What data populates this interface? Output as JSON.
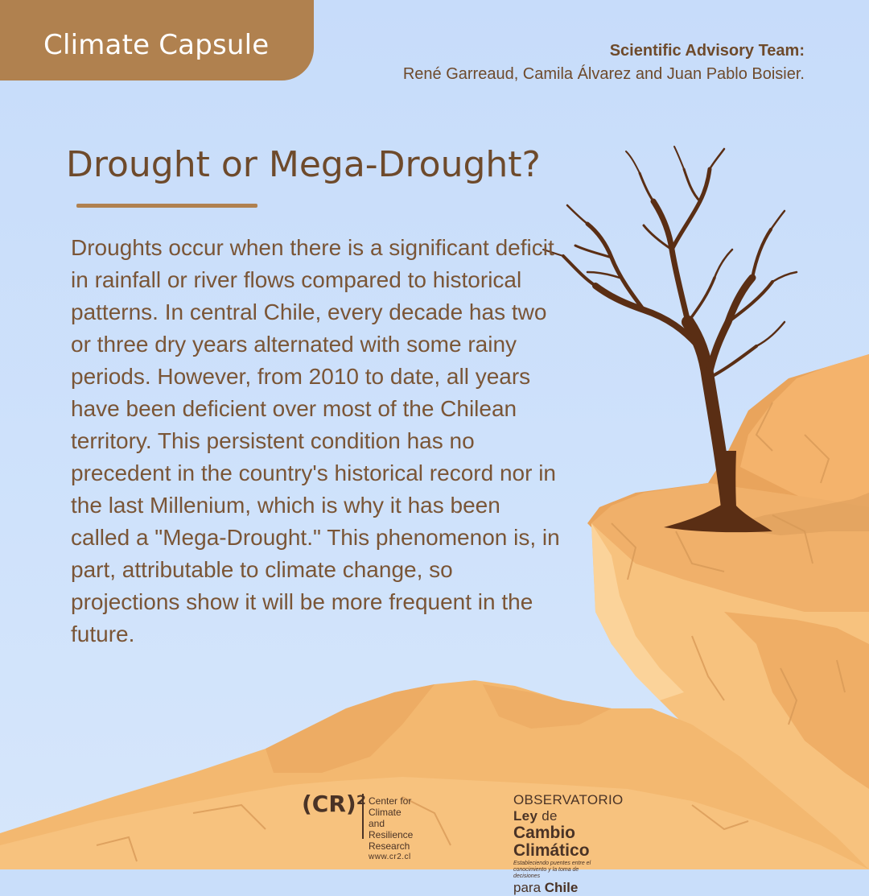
{
  "header": {
    "tab_label": "Climate Capsule",
    "advisory_label": "Scientific Advisory Team:",
    "advisory_names": "René Garreaud, Camila Álvarez and Juan Pablo Boisier."
  },
  "article": {
    "title": "Drought or Mega-Drought?",
    "body": "Droughts occur when there is a significant deficit in rainfall or river flows compared to historical patterns. In central Chile, every decade has two or three dry years alternated with some rainy periods. However, from 2010 to date, all years have been deficient over most of the Chilean territory. This persistent condition has no precedent in the country's historical record nor in the last Millenium, which is why it has been called a \"Mega-Drought.\" This phenomenon is, in part, attributable to climate change, so projections show it will be more frequent in the future."
  },
  "footer": {
    "cr2": {
      "mark": "(CR)²",
      "line1": "Center for Climate",
      "line2": "and Resilience Research",
      "url": "www.cr2.cl"
    },
    "observatorio": {
      "word1": "OBSERVATORIO",
      "word2": "Ley",
      "word3": "de",
      "line2": "Cambio Climático",
      "tagline": "Estableciendo puentes entre el conocimiento y la toma de decisiones",
      "para": "para",
      "chile": "Chile"
    }
  },
  "colors": {
    "sky": "#c9defa",
    "brown_accent": "#b0814f",
    "text_brown": "#7a5536",
    "sand_light": "#f9c88a",
    "sand_dark": "#e9a45c",
    "tree": "#5a2e14"
  },
  "icons": [
    "dead-tree-icon",
    "cr2-logo-icon",
    "observatorio-logo-icon"
  ]
}
